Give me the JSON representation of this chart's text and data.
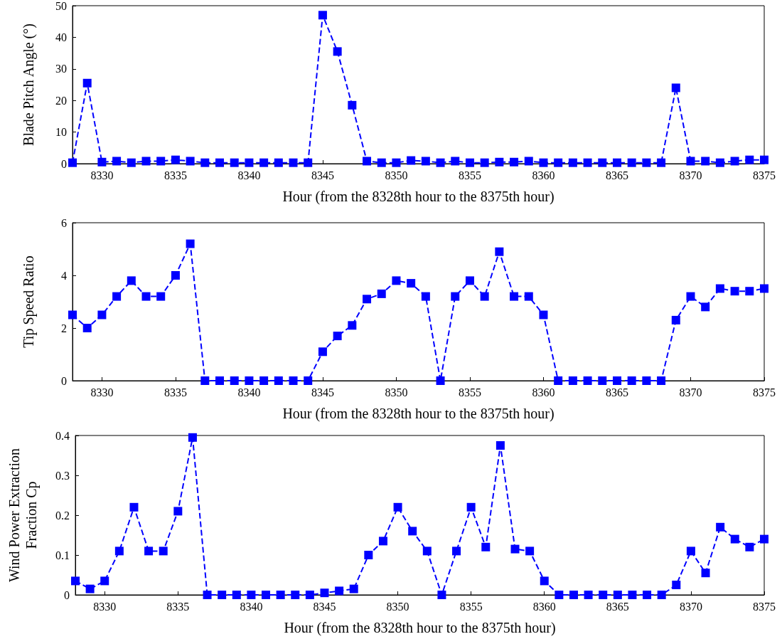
{
  "chart_data": [
    {
      "type": "line",
      "ylabel": "Blade Pitch Angle (°)",
      "xlabel": "Hour (from the 8328th hour to the 8375th hour)",
      "x": [
        8328,
        8329,
        8330,
        8331,
        8332,
        8333,
        8334,
        8335,
        8336,
        8337,
        8338,
        8339,
        8340,
        8341,
        8342,
        8343,
        8344,
        8345,
        8346,
        8347,
        8348,
        8349,
        8350,
        8351,
        8352,
        8353,
        8354,
        8355,
        8356,
        8357,
        8358,
        8359,
        8360,
        8361,
        8362,
        8363,
        8364,
        8365,
        8366,
        8367,
        8368,
        8369,
        8370,
        8371,
        8372,
        8373,
        8374,
        8375
      ],
      "series": [
        {
          "color": "#0000ff",
          "values": [
            0.3,
            25.5,
            0.5,
            0.8,
            0.3,
            0.8,
            0.8,
            1.2,
            0.8,
            0.3,
            0.3,
            0.3,
            0.3,
            0.3,
            0.3,
            0.3,
            0.3,
            47,
            35.5,
            18.5,
            0.8,
            0.3,
            0.3,
            1,
            0.8,
            0.3,
            0.8,
            0.3,
            0.3,
            0.5,
            0.5,
            0.8,
            0.3,
            0.3,
            0.3,
            0.3,
            0.3,
            0.3,
            0.3,
            0.3,
            0.3,
            24,
            0.8,
            0.8,
            0.3,
            0.8,
            1.2,
            1.2
          ]
        }
      ],
      "xlim": [
        8328,
        8375
      ],
      "xticks": [
        8330,
        8335,
        8340,
        8345,
        8350,
        8355,
        8360,
        8365,
        8370,
        8375
      ],
      "ylim": [
        0,
        50
      ],
      "yticks": [
        0,
        10,
        20,
        30,
        40,
        50
      ],
      "marker": "square",
      "line_style": "dashed"
    },
    {
      "type": "line",
      "ylabel": "Tip Speed Ratio",
      "xlabel": "Hour (from the 8328th hour to the 8375th hour)",
      "x": [
        8328,
        8329,
        8330,
        8331,
        8332,
        8333,
        8334,
        8335,
        8336,
        8337,
        8338,
        8339,
        8340,
        8341,
        8342,
        8343,
        8344,
        8345,
        8346,
        8347,
        8348,
        8349,
        8350,
        8351,
        8352,
        8353,
        8354,
        8355,
        8356,
        8357,
        8358,
        8359,
        8360,
        8361,
        8362,
        8363,
        8364,
        8365,
        8366,
        8367,
        8368,
        8369,
        8370,
        8371,
        8372,
        8373,
        8374,
        8375
      ],
      "series": [
        {
          "color": "#0000ff",
          "values": [
            2.5,
            2,
            2.5,
            3.2,
            3.8,
            3.2,
            3.2,
            4,
            5.2,
            0,
            0,
            0,
            0,
            0,
            0,
            0,
            0,
            1.1,
            1.7,
            2.1,
            3.1,
            3.3,
            3.8,
            3.7,
            3.2,
            0,
            3.2,
            3.8,
            3.2,
            4.9,
            3.2,
            3.2,
            2.5,
            0,
            0,
            0,
            0,
            0,
            0,
            0,
            0,
            2.3,
            3.2,
            2.8,
            3.5,
            3.4,
            3.4,
            3.5
          ]
        }
      ],
      "xlim": [
        8328,
        8375
      ],
      "xticks": [
        8330,
        8335,
        8340,
        8345,
        8350,
        8355,
        8360,
        8365,
        8370,
        8375
      ],
      "ylim": [
        0,
        6
      ],
      "yticks": [
        0,
        2,
        4,
        6
      ],
      "marker": "square",
      "line_style": "dashed"
    },
    {
      "type": "line",
      "ylabel": "Wind Power Extraction Fraction Cp",
      "xlabel": "Hour (from the 8328th hour to the 8375th hour)",
      "x": [
        8328,
        8329,
        8330,
        8331,
        8332,
        8333,
        8334,
        8335,
        8336,
        8337,
        8338,
        8339,
        8340,
        8341,
        8342,
        8343,
        8344,
        8345,
        8346,
        8347,
        8348,
        8349,
        8350,
        8351,
        8352,
        8353,
        8354,
        8355,
        8356,
        8357,
        8358,
        8359,
        8360,
        8361,
        8362,
        8363,
        8364,
        8365,
        8366,
        8367,
        8368,
        8369,
        8370,
        8371,
        8372,
        8373,
        8374,
        8375
      ],
      "series": [
        {
          "color": "#0000ff",
          "values": [
            0.035,
            0.015,
            0.035,
            0.11,
            0.22,
            0.11,
            0.11,
            0.21,
            0.395,
            0,
            0,
            0,
            0,
            0,
            0,
            0,
            0,
            0.005,
            0.01,
            0.015,
            0.1,
            0.135,
            0.22,
            0.16,
            0.11,
            0,
            0.11,
            0.22,
            0.12,
            0.375,
            0.115,
            0.11,
            0.035,
            0,
            0,
            0,
            0,
            0,
            0,
            0,
            0,
            0.025,
            0.11,
            0.055,
            0.17,
            0.14,
            0.12,
            0.14
          ]
        }
      ],
      "xlim": [
        8328,
        8375
      ],
      "xticks": [
        8330,
        8335,
        8340,
        8345,
        8350,
        8355,
        8360,
        8365,
        8370,
        8375
      ],
      "ylim": [
        0,
        0.4
      ],
      "yticks": [
        0,
        0.1,
        0.2,
        0.3,
        0.4
      ],
      "marker": "square",
      "line_style": "dashed"
    }
  ]
}
